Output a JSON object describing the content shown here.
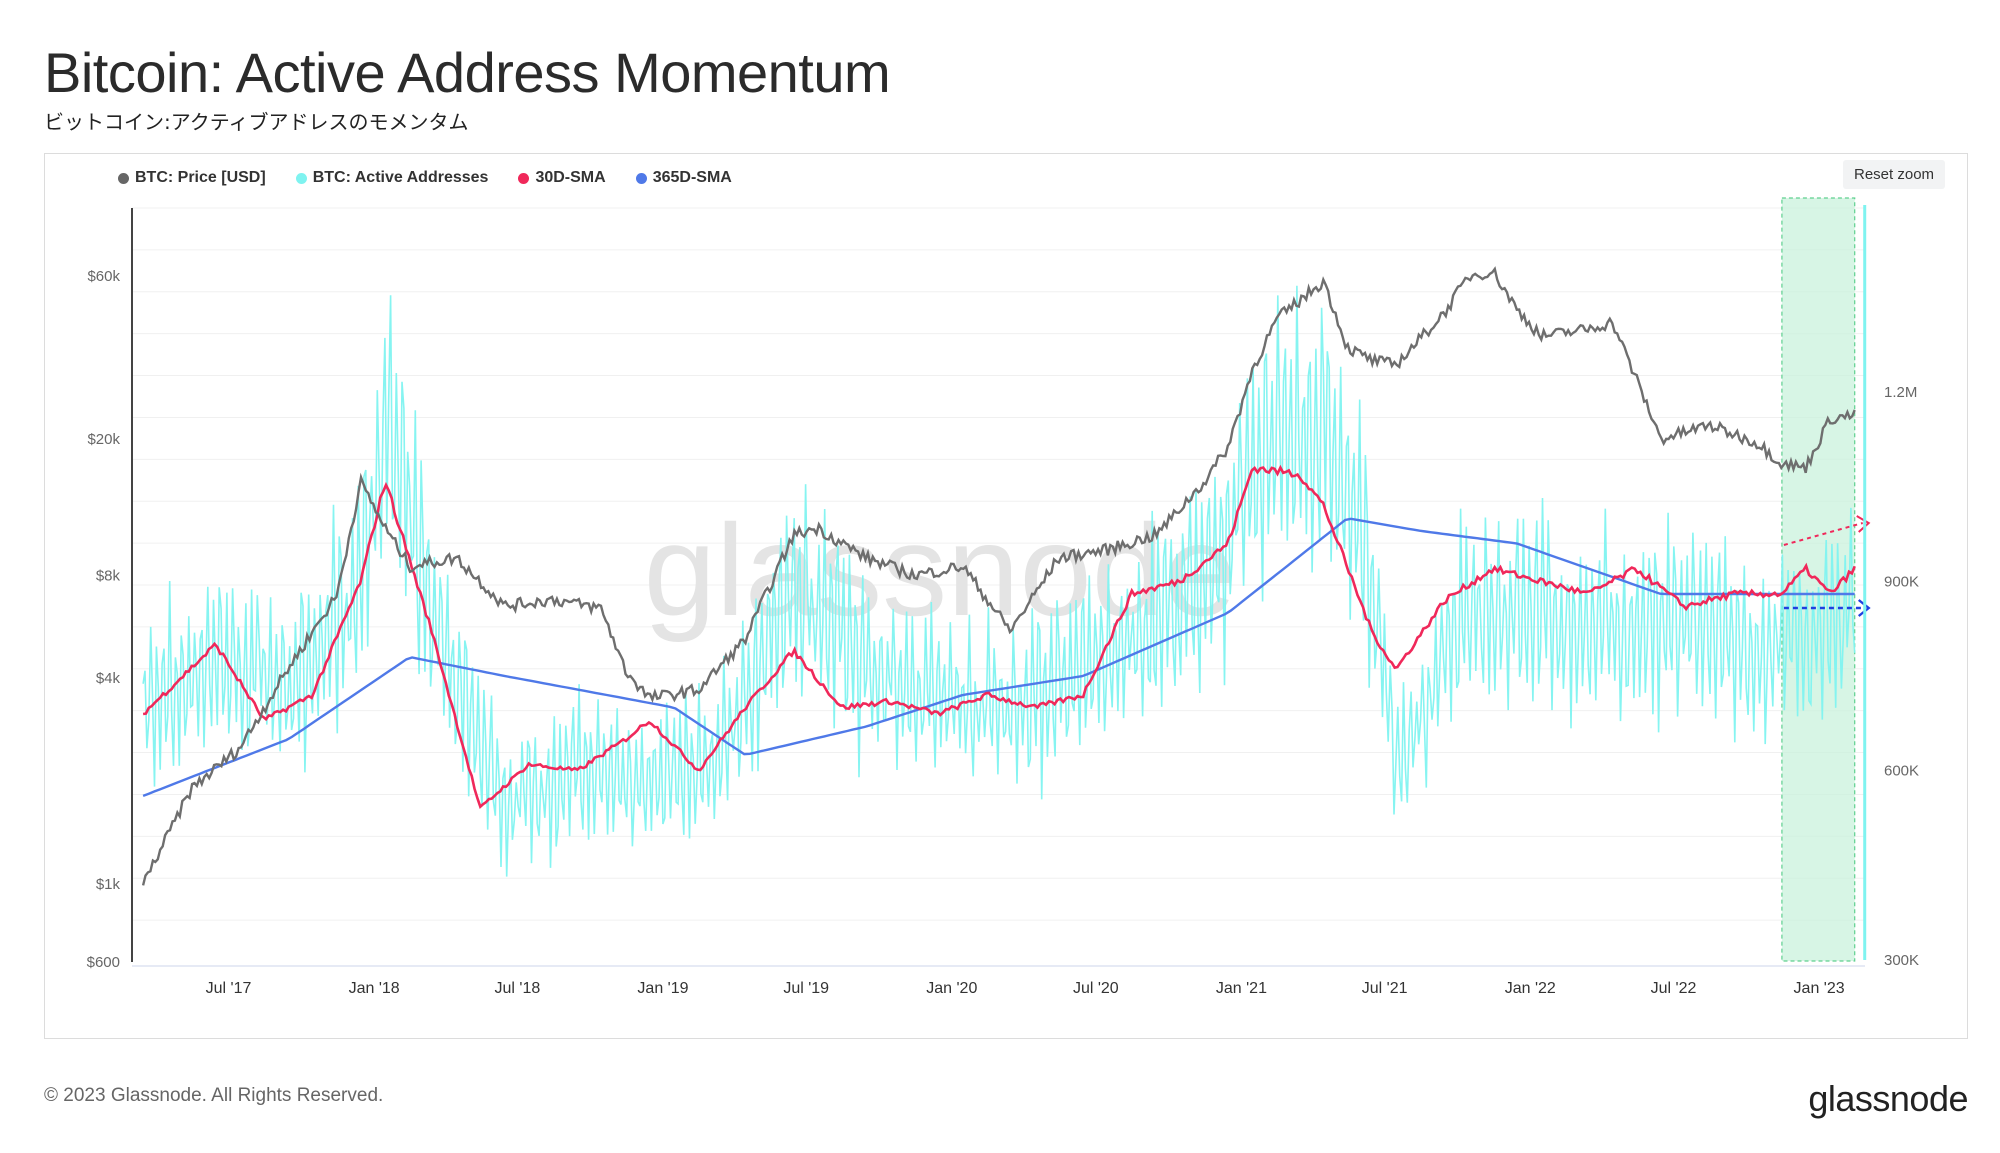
{
  "title": "Bitcoin: Active Address Momentum",
  "subtitle": "ビットコイン:アクティブアドレスのモメンタム",
  "reset_zoom": "Reset zoom",
  "footer": "© 2023 Glassnode. All Rights Reserved.",
  "brand": "glassnode",
  "watermark": "glassnode",
  "chart_data": {
    "type": "line",
    "legend": [
      {
        "name": "BTC: Price [USD]",
        "color": "#666666"
      },
      {
        "name": "BTC: Active Addresses",
        "color": "#7ff3f0"
      },
      {
        "name": "30D-SMA",
        "color": "#f0285a"
      },
      {
        "name": "365D-SMA",
        "color": "#4f79e8"
      }
    ],
    "x_ticks": [
      "Jul '17",
      "Jan '18",
      "Jul '18",
      "Jan '19",
      "Jul '19",
      "Jan '20",
      "Jul '20",
      "Jan '21",
      "Jul '21",
      "Jan '22",
      "Jul '22",
      "Jan '23"
    ],
    "y_left_ticks": [
      "$60k",
      "$20k",
      "$8k",
      "$4k",
      "$1k",
      "$600"
    ],
    "y_left_values": [
      60000,
      20000,
      8000,
      4000,
      1000,
      600
    ],
    "y_left_scale": "log",
    "y_right_ticks": [
      "1.2M",
      "900K",
      "600K",
      "300K"
    ],
    "y_right_values": [
      1200000,
      900000,
      600000,
      300000
    ],
    "y_right_scale": "linear",
    "x_range": [
      "2017-03-01",
      "2023-02-28"
    ],
    "series": [
      {
        "name": "BTC: Price [USD]",
        "axis": "left",
        "x": [
          "2017-03",
          "2017-05",
          "2017-07",
          "2017-09",
          "2017-11",
          "2017-12",
          "2018-01",
          "2018-02",
          "2018-04",
          "2018-06",
          "2018-08",
          "2018-10",
          "2018-11",
          "2018-12",
          "2019-02",
          "2019-04",
          "2019-06",
          "2019-07",
          "2019-09",
          "2019-11",
          "2020-01",
          "2020-03",
          "2020-05",
          "2020-07",
          "2020-09",
          "2020-11",
          "2020-12",
          "2021-01",
          "2021-02",
          "2021-04",
          "2021-05",
          "2021-06",
          "2021-07",
          "2021-09",
          "2021-10",
          "2021-11",
          "2021-12",
          "2022-01",
          "2022-03",
          "2022-04",
          "2022-05",
          "2022-06",
          "2022-08",
          "2022-10",
          "2022-11",
          "2022-12",
          "2023-01",
          "2023-02"
        ],
        "y": [
          1000,
          1900,
          2500,
          4300,
          7000,
          15000,
          11000,
          8500,
          9000,
          6500,
          6800,
          6400,
          4200,
          3500,
          3700,
          5200,
          10500,
          11000,
          9000,
          8000,
          8500,
          5500,
          9000,
          9500,
          10500,
          15000,
          19000,
          32000,
          45000,
          58000,
          37000,
          34000,
          33000,
          47000,
          60000,
          62000,
          48000,
          40000,
          42000,
          44000,
          30000,
          20000,
          22000,
          19500,
          17000,
          16500,
          23000,
          23500
        ]
      },
      {
        "name": "BTC: Active Addresses",
        "axis": "right",
        "x": [
          "2017-03",
          "2017-06",
          "2017-09",
          "2017-12",
          "2018-01",
          "2018-03",
          "2018-06",
          "2018-09",
          "2018-12",
          "2019-03",
          "2019-06",
          "2019-09",
          "2019-12",
          "2020-03",
          "2020-06",
          "2020-09",
          "2020-12",
          "2021-01",
          "2021-04",
          "2021-06",
          "2021-07",
          "2021-10",
          "2022-01",
          "2022-04",
          "2022-07",
          "2022-10",
          "2023-01",
          "2023-02"
        ],
        "y": [
          700000,
          780000,
          720000,
          900000,
          1150000,
          850000,
          550000,
          600000,
          580000,
          620000,
          900000,
          760000,
          720000,
          700000,
          760000,
          820000,
          960000,
          1100000,
          1150000,
          900000,
          600000,
          850000,
          850000,
          820000,
          830000,
          780000,
          820000,
          860000
        ]
      },
      {
        "name": "30D-SMA",
        "axis": "right",
        "x": [
          "2017-03",
          "2017-06",
          "2017-08",
          "2017-10",
          "2017-12",
          "2018-01",
          "2018-03",
          "2018-05",
          "2018-07",
          "2018-09",
          "2018-11",
          "2018-12",
          "2019-02",
          "2019-04",
          "2019-06",
          "2019-08",
          "2019-10",
          "2019-12",
          "2020-02",
          "2020-04",
          "2020-06",
          "2020-08",
          "2020-10",
          "2020-12",
          "2021-01",
          "2021-03",
          "2021-04",
          "2021-06",
          "2021-07",
          "2021-09",
          "2021-11",
          "2022-01",
          "2022-03",
          "2022-05",
          "2022-07",
          "2022-09",
          "2022-11",
          "2022-12",
          "2023-01",
          "2023-02"
        ],
        "y": [
          690000,
          800000,
          680000,
          720000,
          900000,
          1060000,
          820000,
          540000,
          610000,
          600000,
          650000,
          680000,
          600000,
          700000,
          790000,
          700000,
          710000,
          690000,
          720000,
          700000,
          720000,
          880000,
          900000,
          960000,
          1080000,
          1070000,
          1020000,
          820000,
          760000,
          870000,
          920000,
          900000,
          880000,
          920000,
          860000,
          880000,
          880000,
          920000,
          880000,
          920000
        ]
      },
      {
        "name": "365D-SMA",
        "axis": "right",
        "x": [
          "2017-03",
          "2017-09",
          "2018-02",
          "2018-06",
          "2019-01",
          "2019-04",
          "2019-09",
          "2020-01",
          "2020-06",
          "2020-12",
          "2021-05",
          "2021-08",
          "2021-12",
          "2022-06",
          "2022-12",
          "2023-02"
        ],
        "y": [
          560000,
          650000,
          780000,
          750000,
          700000,
          625000,
          670000,
          720000,
          750000,
          850000,
          1000000,
          980000,
          960000,
          880000,
          880000,
          880000
        ]
      }
    ]
  }
}
